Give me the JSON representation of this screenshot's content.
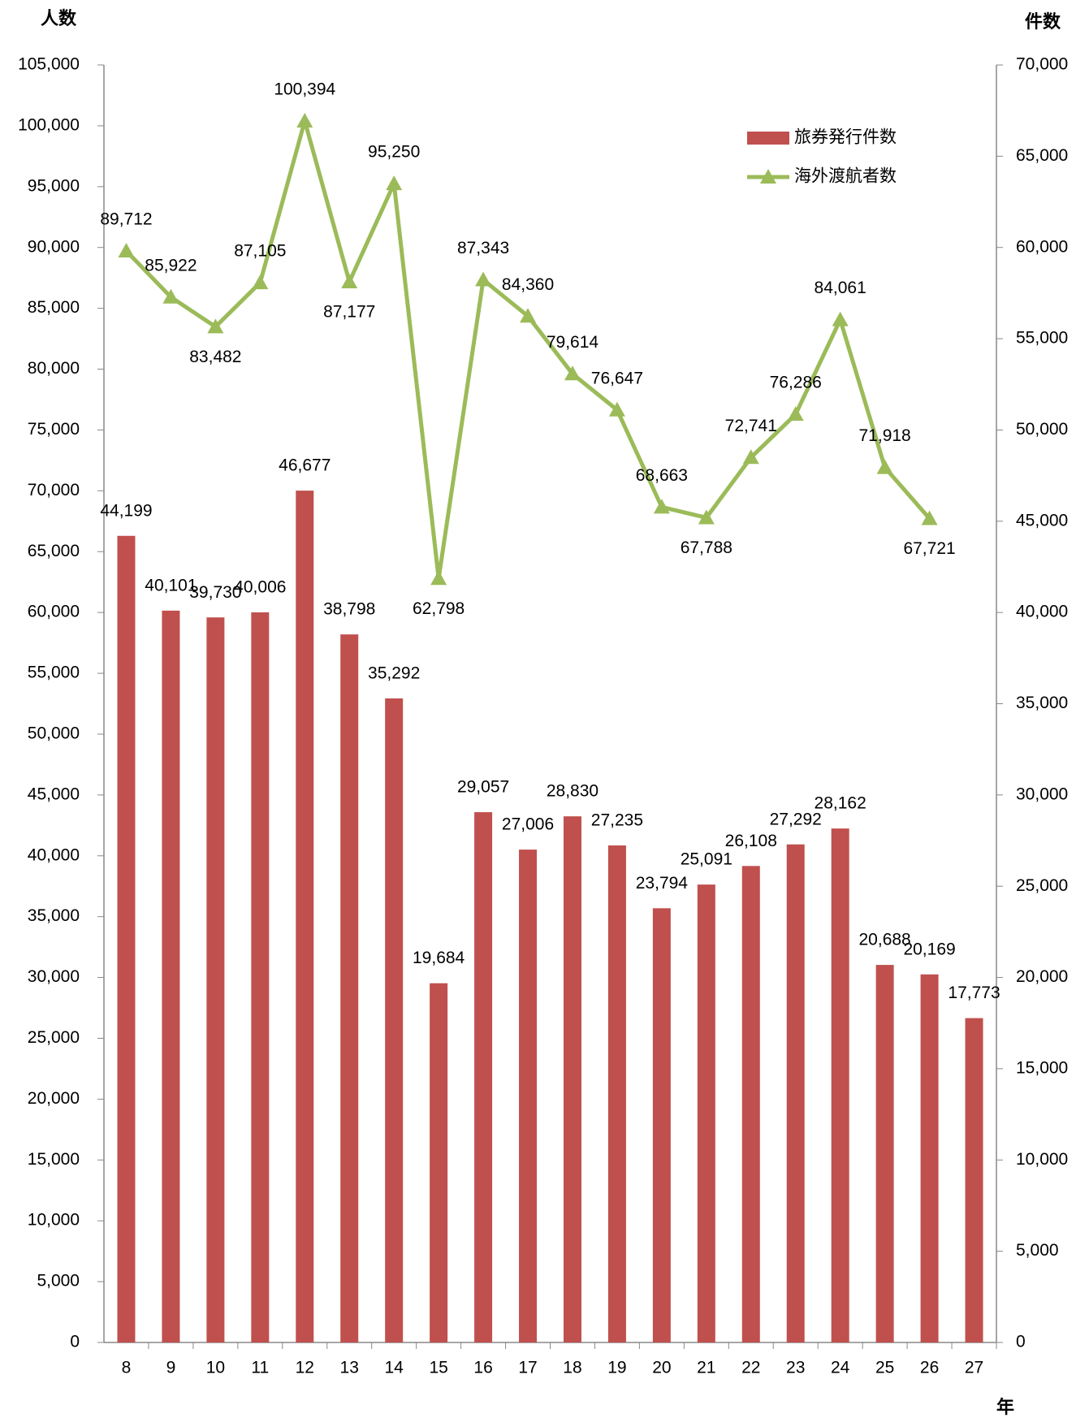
{
  "chart_data": {
    "type": "bar+line",
    "y_label": "人数",
    "y2_label": "件数",
    "x_label": "年",
    "categories": [
      "8",
      "9",
      "10",
      "11",
      "12",
      "13",
      "14",
      "15",
      "16",
      "17",
      "18",
      "19",
      "20",
      "21",
      "22",
      "23",
      "24",
      "25",
      "26",
      "27"
    ],
    "series": [
      {
        "name": "旅券発行件数",
        "type": "bar",
        "axis": "y2",
        "color": "#c0504d",
        "values": [
          44199,
          40101,
          39730,
          40006,
          46677,
          38798,
          35292,
          19684,
          29057,
          27006,
          28830,
          27235,
          23794,
          25091,
          26108,
          27292,
          28162,
          20688,
          20169,
          17773
        ],
        "value_labels": [
          "44,199",
          "40,101",
          "39,730",
          "40,006",
          "46,677",
          "38,798",
          "35,292",
          "19,684",
          "29,057",
          "27,006",
          "28,830",
          "27,235",
          "23,794",
          "25,091",
          "26,108",
          "27,292",
          "28,162",
          "20,688",
          "20,169",
          "17,773"
        ]
      },
      {
        "name": "海外渡航者数",
        "type": "line",
        "axis": "y",
        "color": "#9bbb59",
        "values": [
          89712,
          85922,
          83482,
          87105,
          100394,
          87177,
          95250,
          62798,
          87343,
          84360,
          79614,
          76647,
          68663,
          67788,
          72741,
          76286,
          84061,
          71918,
          67721,
          null
        ],
        "value_labels": [
          "89,712",
          "85,922",
          "83,482",
          "87,105",
          "100,394",
          "87,177",
          "95,250",
          "62,798",
          "87,343",
          "84,360",
          "79,614",
          "76,647",
          "68,663",
          "67,788",
          "72,741",
          "76,286",
          "84,061",
          "71,918",
          "67,721",
          null
        ]
      }
    ],
    "ylim": [
      0,
      105000
    ],
    "yticks": [
      0,
      {
        "value": 5000,
        "label": "5,000"
      },
      {
        "value": 10000,
        "label": "10,000"
      },
      {
        "value": 15000,
        "label": "15,000"
      },
      {
        "value": 20000,
        "label": "20,000"
      },
      {
        "value": 25000,
        "label": "25,000"
      },
      {
        "value": 30000,
        "label": "30,000"
      },
      {
        "value": 35000,
        "label": "35,000"
      },
      {
        "value": 40000,
        "label": "40,000"
      },
      {
        "value": 45000,
        "label": "45,000"
      },
      {
        "value": 50000,
        "label": "50,000"
      },
      {
        "value": 55000,
        "label": "55,000"
      },
      {
        "value": 60000,
        "label": "60,000"
      },
      {
        "value": 65000,
        "label": "65,000"
      },
      {
        "value": 70000,
        "label": "70,000"
      },
      {
        "value": 75000,
        "label": "75,000"
      },
      {
        "value": 80000,
        "label": "80,000"
      },
      {
        "value": 85000,
        "label": "85,000"
      },
      {
        "value": 90000,
        "label": "90,000"
      },
      {
        "value": 95000,
        "label": "95,000"
      },
      {
        "value": 100000,
        "label": "100,000"
      },
      {
        "value": 105000,
        "label": "105,000"
      }
    ],
    "y2lim": [
      0,
      70000
    ],
    "y2ticks": [
      0,
      {
        "value": 5000,
        "label": "5,000"
      },
      {
        "value": 10000,
        "label": "10,000"
      },
      {
        "value": 15000,
        "label": "15,000"
      },
      {
        "value": 20000,
        "label": "20,000"
      },
      {
        "value": 25000,
        "label": "25,000"
      },
      {
        "value": 30000,
        "label": "30,000"
      },
      {
        "value": 35000,
        "label": "35,000"
      },
      {
        "value": 40000,
        "label": "40,000"
      },
      {
        "value": 45000,
        "label": "45,000"
      },
      {
        "value": 50000,
        "label": "50,000"
      },
      {
        "value": 55000,
        "label": "55,000"
      },
      {
        "value": 60000,
        "label": "60,000"
      },
      {
        "value": 65000,
        "label": "65,000"
      },
      {
        "value": 70000,
        "label": "70,000"
      }
    ],
    "legend": "upper right",
    "grid": false
  }
}
